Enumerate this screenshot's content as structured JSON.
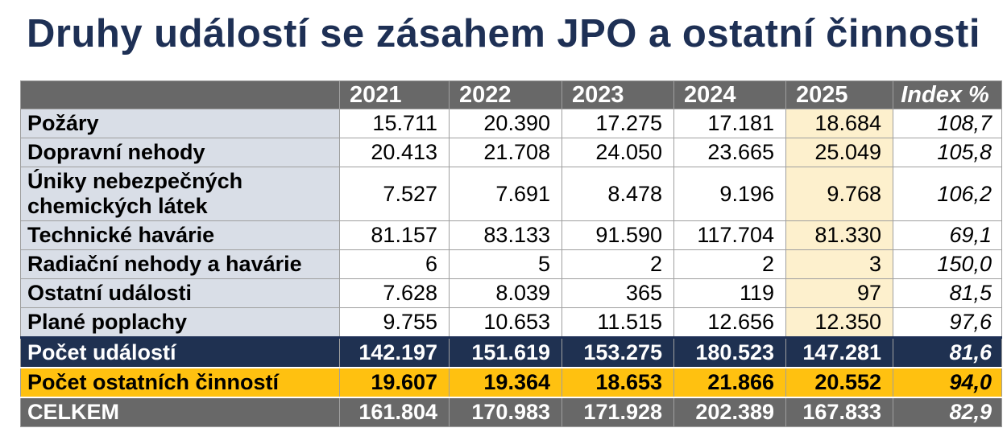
{
  "title": "Druhy událostí se zásahem JPO a ostatní činnosti",
  "table": {
    "corner_label": "",
    "year_columns": [
      "2021",
      "2022",
      "2023",
      "2024",
      "2025"
    ],
    "index_column": "Index %",
    "rows": [
      {
        "label": "Požáry",
        "values": [
          "15.711",
          "20.390",
          "17.275",
          "17.181",
          "18.684"
        ],
        "index": "108,7",
        "style": "data"
      },
      {
        "label": "Dopravní nehody",
        "values": [
          "20.413",
          "21.708",
          "24.050",
          "23.665",
          "25.049"
        ],
        "index": "105,8",
        "style": "data"
      },
      {
        "label": "Úniky nebezpečných chemických látek",
        "values": [
          "7.527",
          "7.691",
          "8.478",
          "9.196",
          "9.768"
        ],
        "index": "106,2",
        "style": "data"
      },
      {
        "label": "Technické havárie",
        "values": [
          "81.157",
          "83.133",
          "91.590",
          "117.704",
          "81.330"
        ],
        "index": "69,1",
        "style": "data"
      },
      {
        "label": "Radiační nehody a havárie",
        "values": [
          "6",
          "5",
          "2",
          "2",
          "3"
        ],
        "index": "150,0",
        "style": "data"
      },
      {
        "label": "Ostatní události",
        "values": [
          "7.628",
          "8.039",
          "365",
          "119",
          "97"
        ],
        "index": "81,5",
        "style": "data"
      },
      {
        "label": "Plané poplachy",
        "values": [
          "9.755",
          "10.653",
          "11.515",
          "12.656",
          "12.350"
        ],
        "index": "97,6",
        "style": "data"
      },
      {
        "label": "Počet událostí",
        "values": [
          "142.197",
          "151.619",
          "153.275",
          "180.523",
          "147.281"
        ],
        "index": "81,6",
        "style": "summary-navy"
      },
      {
        "label": "Počet ostatních činností",
        "values": [
          "19.607",
          "19.364",
          "18.653",
          "21.866",
          "20.552"
        ],
        "index": "94,0",
        "style": "summary-yellow"
      },
      {
        "label": "CELKEM",
        "values": [
          "161.804",
          "170.983",
          "171.928",
          "202.389",
          "167.833"
        ],
        "index": "82,9",
        "style": "summary-gray"
      }
    ]
  },
  "chart_data": {
    "type": "table",
    "title": "Druhy událostí se zásahem JPO a ostatní činnosti",
    "columns": [
      "2021",
      "2022",
      "2023",
      "2024",
      "2025",
      "Index %"
    ],
    "rows": [
      {
        "label": "Požáry",
        "values": [
          15711,
          20390,
          17275,
          17181,
          18684
        ],
        "index_pct": 108.7
      },
      {
        "label": "Úniky nebezpečných chemických látek",
        "values": [
          7527,
          7691,
          8478,
          9196,
          9768
        ],
        "index_pct": 106.2
      },
      {
        "label": "Dopravní nehody",
        "values": [
          20413,
          21708,
          24050,
          23665,
          25049
        ],
        "index_pct": 105.8
      },
      {
        "label": "Technické havárie",
        "values": [
          81157,
          83133,
          91590,
          117704,
          81330
        ],
        "index_pct": 69.1
      },
      {
        "label": "Radiační nehody a havárie",
        "values": [
          6,
          5,
          2,
          2,
          3
        ],
        "index_pct": 150.0
      },
      {
        "label": "Ostatní události",
        "values": [
          7628,
          8039,
          365,
          119,
          97
        ],
        "index_pct": 81.5
      },
      {
        "label": "Plané poplachy",
        "values": [
          9755,
          10653,
          11515,
          12656,
          12350
        ],
        "index_pct": 97.6
      },
      {
        "label": "Počet událostí",
        "values": [
          142197,
          151619,
          153275,
          180523,
          147281
        ],
        "index_pct": 81.6
      },
      {
        "label": "Počet ostatních činností",
        "values": [
          19607,
          19364,
          18653,
          21866,
          20552
        ],
        "index_pct": 94.0
      },
      {
        "label": "CELKEM",
        "values": [
          161804,
          170983,
          171928,
          202389,
          167833
        ],
        "index_pct": 82.9
      }
    ]
  },
  "colors": {
    "title_text": "#1e3055",
    "header_bg": "#686868",
    "label_col_bg": "#d9dee7",
    "col_2025_bg": "#fdf0cd",
    "summary_events_bg": "#1f3151",
    "summary_other_bg": "#ffc110",
    "summary_total_bg": "#686868",
    "gridline": "#9f9f9f"
  }
}
